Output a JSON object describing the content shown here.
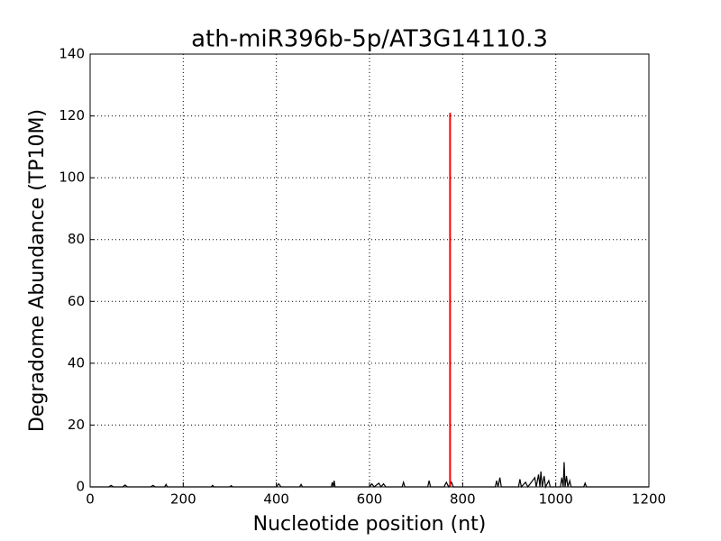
{
  "chart_data": {
    "type": "line",
    "title": "ath-miR396b-5p/AT3G14110.3",
    "x_label": "Nucleotide position (nt)",
    "y_label": "Degradome Abundance (TP10M)",
    "xlim": [
      0,
      1200
    ],
    "xticks": [
      0,
      200,
      400,
      600,
      800,
      1000,
      1200
    ],
    "ylim": [
      0,
      140
    ],
    "yticks": [
      0,
      20,
      40,
      60,
      80,
      100,
      120,
      140
    ],
    "grid": true,
    "series": [
      {
        "color": "#000000",
        "x": [
          0,
          40,
          45,
          50,
          70,
          75,
          80,
          130,
          135,
          140,
          160,
          163,
          166,
          260,
          263,
          266,
          300,
          303,
          306,
          400,
          405,
          410,
          450,
          453,
          456,
          518,
          520,
          522,
          524,
          526,
          600,
          605,
          610,
          620,
          625,
          630,
          635,
          670,
          673,
          676,
          725,
          728,
          731,
          760,
          765,
          770,
          776,
          780,
          870,
          873,
          876,
          880,
          883,
          920,
          923,
          926,
          935,
          940,
          955,
          958,
          963,
          966,
          968,
          971,
          975,
          978,
          985,
          988,
          1010,
          1013,
          1016,
          1018,
          1020,
          1023,
          1026,
          1030,
          1033,
          1060,
          1063,
          1066,
          1200
        ],
        "values": [
          0,
          0,
          0.5,
          0,
          0,
          0.6,
          0,
          0,
          0.5,
          0,
          0,
          0.8,
          0,
          0,
          0.5,
          0,
          0,
          0.4,
          0,
          0,
          1,
          0,
          0,
          0.8,
          0,
          0,
          1.5,
          0,
          2,
          0,
          0,
          1,
          0,
          1.2,
          0,
          1,
          0,
          0,
          1.5,
          0,
          0,
          2,
          0,
          0,
          1.5,
          0,
          1.5,
          0,
          0,
          2,
          0,
          3,
          0,
          0,
          2.5,
          0,
          1.5,
          0,
          3,
          0,
          4,
          0,
          5,
          0,
          3.5,
          0,
          2,
          0,
          0,
          3,
          0,
          8,
          0,
          3.5,
          0,
          2,
          0,
          0,
          1.2,
          0,
          0
        ]
      },
      {
        "color": "#ff0000",
        "x": [
          773,
          773
        ],
        "values": [
          0,
          121
        ]
      }
    ]
  }
}
